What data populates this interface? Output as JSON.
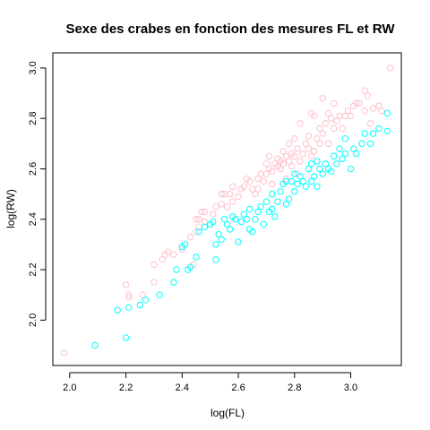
{
  "chart_data": {
    "type": "scatter",
    "title": "Sexe des crabes en fonction des mesures FL et RW",
    "xlabel": "log(FL)",
    "ylabel": "log(RW)",
    "xlim": [
      1.94,
      3.18
    ],
    "ylim": [
      1.82,
      3.06
    ],
    "x_ticks": [
      "2.0",
      "2.2",
      "2.4",
      "2.6",
      "2.8",
      "3.0"
    ],
    "y_ticks": [
      "2.0",
      "2.2",
      "2.4",
      "2.6",
      "2.8",
      "3.0"
    ],
    "grid": false,
    "legend": "none",
    "series": [
      {
        "color": "#ffc0cb",
        "points": [
          [
            1.98,
            1.87
          ],
          [
            2.2,
            2.14
          ],
          [
            2.21,
            2.1
          ],
          [
            2.21,
            2.09
          ],
          [
            2.26,
            2.1
          ],
          [
            2.3,
            2.15
          ],
          [
            2.3,
            2.22
          ],
          [
            2.33,
            2.24
          ],
          [
            2.34,
            2.26
          ],
          [
            2.35,
            2.27
          ],
          [
            2.37,
            2.26
          ],
          [
            2.4,
            2.28
          ],
          [
            2.43,
            2.33
          ],
          [
            2.44,
            2.22
          ],
          [
            2.45,
            2.35
          ],
          [
            2.45,
            2.4
          ],
          [
            2.46,
            2.37
          ],
          [
            2.46,
            2.4
          ],
          [
            2.47,
            2.43
          ],
          [
            2.48,
            2.39
          ],
          [
            2.48,
            2.43
          ],
          [
            2.5,
            2.38
          ],
          [
            2.51,
            2.42
          ],
          [
            2.52,
            2.45
          ],
          [
            2.54,
            2.46
          ],
          [
            2.54,
            2.5
          ],
          [
            2.55,
            2.5
          ],
          [
            2.56,
            2.45
          ],
          [
            2.57,
            2.5
          ],
          [
            2.58,
            2.47
          ],
          [
            2.58,
            2.53
          ],
          [
            2.59,
            2.4
          ],
          [
            2.6,
            2.49
          ],
          [
            2.61,
            2.52
          ],
          [
            2.62,
            2.53
          ],
          [
            2.63,
            2.56
          ],
          [
            2.64,
            2.55
          ],
          [
            2.65,
            2.52
          ],
          [
            2.66,
            2.5
          ],
          [
            2.67,
            2.52
          ],
          [
            2.67,
            2.56
          ],
          [
            2.68,
            2.58
          ],
          [
            2.69,
            2.55
          ],
          [
            2.7,
            2.58
          ],
          [
            2.7,
            2.62
          ],
          [
            2.71,
            2.6
          ],
          [
            2.71,
            2.65
          ],
          [
            2.72,
            2.54
          ],
          [
            2.72,
            2.59
          ],
          [
            2.73,
            2.62
          ],
          [
            2.74,
            2.61
          ],
          [
            2.74,
            2.64
          ],
          [
            2.75,
            2.6
          ],
          [
            2.75,
            2.63
          ],
          [
            2.76,
            2.62
          ],
          [
            2.76,
            2.67
          ],
          [
            2.77,
            2.56
          ],
          [
            2.77,
            2.65
          ],
          [
            2.78,
            2.63
          ],
          [
            2.78,
            2.7
          ],
          [
            2.79,
            2.61
          ],
          [
            2.79,
            2.66
          ],
          [
            2.8,
            2.65
          ],
          [
            2.8,
            2.72
          ],
          [
            2.81,
            2.58
          ],
          [
            2.81,
            2.68
          ],
          [
            2.82,
            2.63
          ],
          [
            2.82,
            2.78
          ],
          [
            2.83,
            2.66
          ],
          [
            2.84,
            2.7
          ],
          [
            2.85,
            2.68
          ],
          [
            2.85,
            2.73
          ],
          [
            2.86,
            2.65
          ],
          [
            2.86,
            2.82
          ],
          [
            2.87,
            2.67
          ],
          [
            2.87,
            2.81
          ],
          [
            2.88,
            2.72
          ],
          [
            2.89,
            2.7
          ],
          [
            2.89,
            2.76
          ],
          [
            2.9,
            2.74
          ],
          [
            2.9,
            2.88
          ],
          [
            2.91,
            2.78
          ],
          [
            2.92,
            2.7
          ],
          [
            2.92,
            2.82
          ],
          [
            2.93,
            2.8
          ],
          [
            2.94,
            2.76
          ],
          [
            2.94,
            2.86
          ],
          [
            2.95,
            2.79
          ],
          [
            2.96,
            2.81
          ],
          [
            2.97,
            2.76
          ],
          [
            2.98,
            2.81
          ],
          [
            2.99,
            2.83
          ],
          [
            3.0,
            2.81
          ],
          [
            3.01,
            2.85
          ],
          [
            3.02,
            2.86
          ],
          [
            3.03,
            2.86
          ],
          [
            3.05,
            2.83
          ],
          [
            3.05,
            2.91
          ],
          [
            3.06,
            2.89
          ],
          [
            3.07,
            2.78
          ],
          [
            3.08,
            2.84
          ],
          [
            3.1,
            2.85
          ],
          [
            3.11,
            2.83
          ],
          [
            3.14,
            3.0
          ]
        ]
      },
      {
        "color": "#00ffff",
        "points": [
          [
            2.09,
            1.9
          ],
          [
            2.17,
            2.04
          ],
          [
            2.2,
            1.93
          ],
          [
            2.21,
            2.05
          ],
          [
            2.25,
            2.06
          ],
          [
            2.27,
            2.08
          ],
          [
            2.32,
            2.1
          ],
          [
            2.37,
            2.15
          ],
          [
            2.38,
            2.2
          ],
          [
            2.4,
            2.29
          ],
          [
            2.41,
            2.3
          ],
          [
            2.42,
            2.2
          ],
          [
            2.43,
            2.21
          ],
          [
            2.45,
            2.25
          ],
          [
            2.46,
            2.35
          ],
          [
            2.48,
            2.37
          ],
          [
            2.5,
            2.38
          ],
          [
            2.51,
            2.39
          ],
          [
            2.52,
            2.24
          ],
          [
            2.52,
            2.3
          ],
          [
            2.53,
            2.34
          ],
          [
            2.54,
            2.32
          ],
          [
            2.55,
            2.4
          ],
          [
            2.56,
            2.38
          ],
          [
            2.57,
            2.36
          ],
          [
            2.58,
            2.41
          ],
          [
            2.59,
            2.4
          ],
          [
            2.6,
            2.31
          ],
          [
            2.61,
            2.39
          ],
          [
            2.62,
            2.42
          ],
          [
            2.63,
            2.4
          ],
          [
            2.64,
            2.36
          ],
          [
            2.64,
            2.44
          ],
          [
            2.65,
            2.35
          ],
          [
            2.66,
            2.4
          ],
          [
            2.67,
            2.43
          ],
          [
            2.68,
            2.45
          ],
          [
            2.69,
            2.38
          ],
          [
            2.7,
            2.47
          ],
          [
            2.71,
            2.43
          ],
          [
            2.72,
            2.44
          ],
          [
            2.72,
            2.5
          ],
          [
            2.73,
            2.41
          ],
          [
            2.74,
            2.47
          ],
          [
            2.75,
            2.51
          ],
          [
            2.76,
            2.54
          ],
          [
            2.77,
            2.46
          ],
          [
            2.77,
            2.55
          ],
          [
            2.78,
            2.48
          ],
          [
            2.79,
            2.55
          ],
          [
            2.8,
            2.51
          ],
          [
            2.8,
            2.58
          ],
          [
            2.81,
            2.54
          ],
          [
            2.82,
            2.57
          ],
          [
            2.83,
            2.55
          ],
          [
            2.84,
            2.53
          ],
          [
            2.85,
            2.6
          ],
          [
            2.86,
            2.55
          ],
          [
            2.86,
            2.62
          ],
          [
            2.87,
            2.57
          ],
          [
            2.88,
            2.53
          ],
          [
            2.88,
            2.63
          ],
          [
            2.89,
            2.6
          ],
          [
            2.9,
            2.58
          ],
          [
            2.91,
            2.62
          ],
          [
            2.92,
            2.6
          ],
          [
            2.93,
            2.59
          ],
          [
            2.94,
            2.65
          ],
          [
            2.95,
            2.62
          ],
          [
            2.96,
            2.68
          ],
          [
            2.97,
            2.64
          ],
          [
            2.98,
            2.66
          ],
          [
            2.98,
            2.72
          ],
          [
            3.0,
            2.6
          ],
          [
            3.01,
            2.68
          ],
          [
            3.02,
            2.66
          ],
          [
            3.04,
            2.7
          ],
          [
            3.05,
            2.74
          ],
          [
            3.07,
            2.7
          ],
          [
            3.08,
            2.74
          ],
          [
            3.1,
            2.76
          ],
          [
            3.13,
            2.75
          ],
          [
            3.13,
            2.82
          ]
        ]
      }
    ]
  }
}
